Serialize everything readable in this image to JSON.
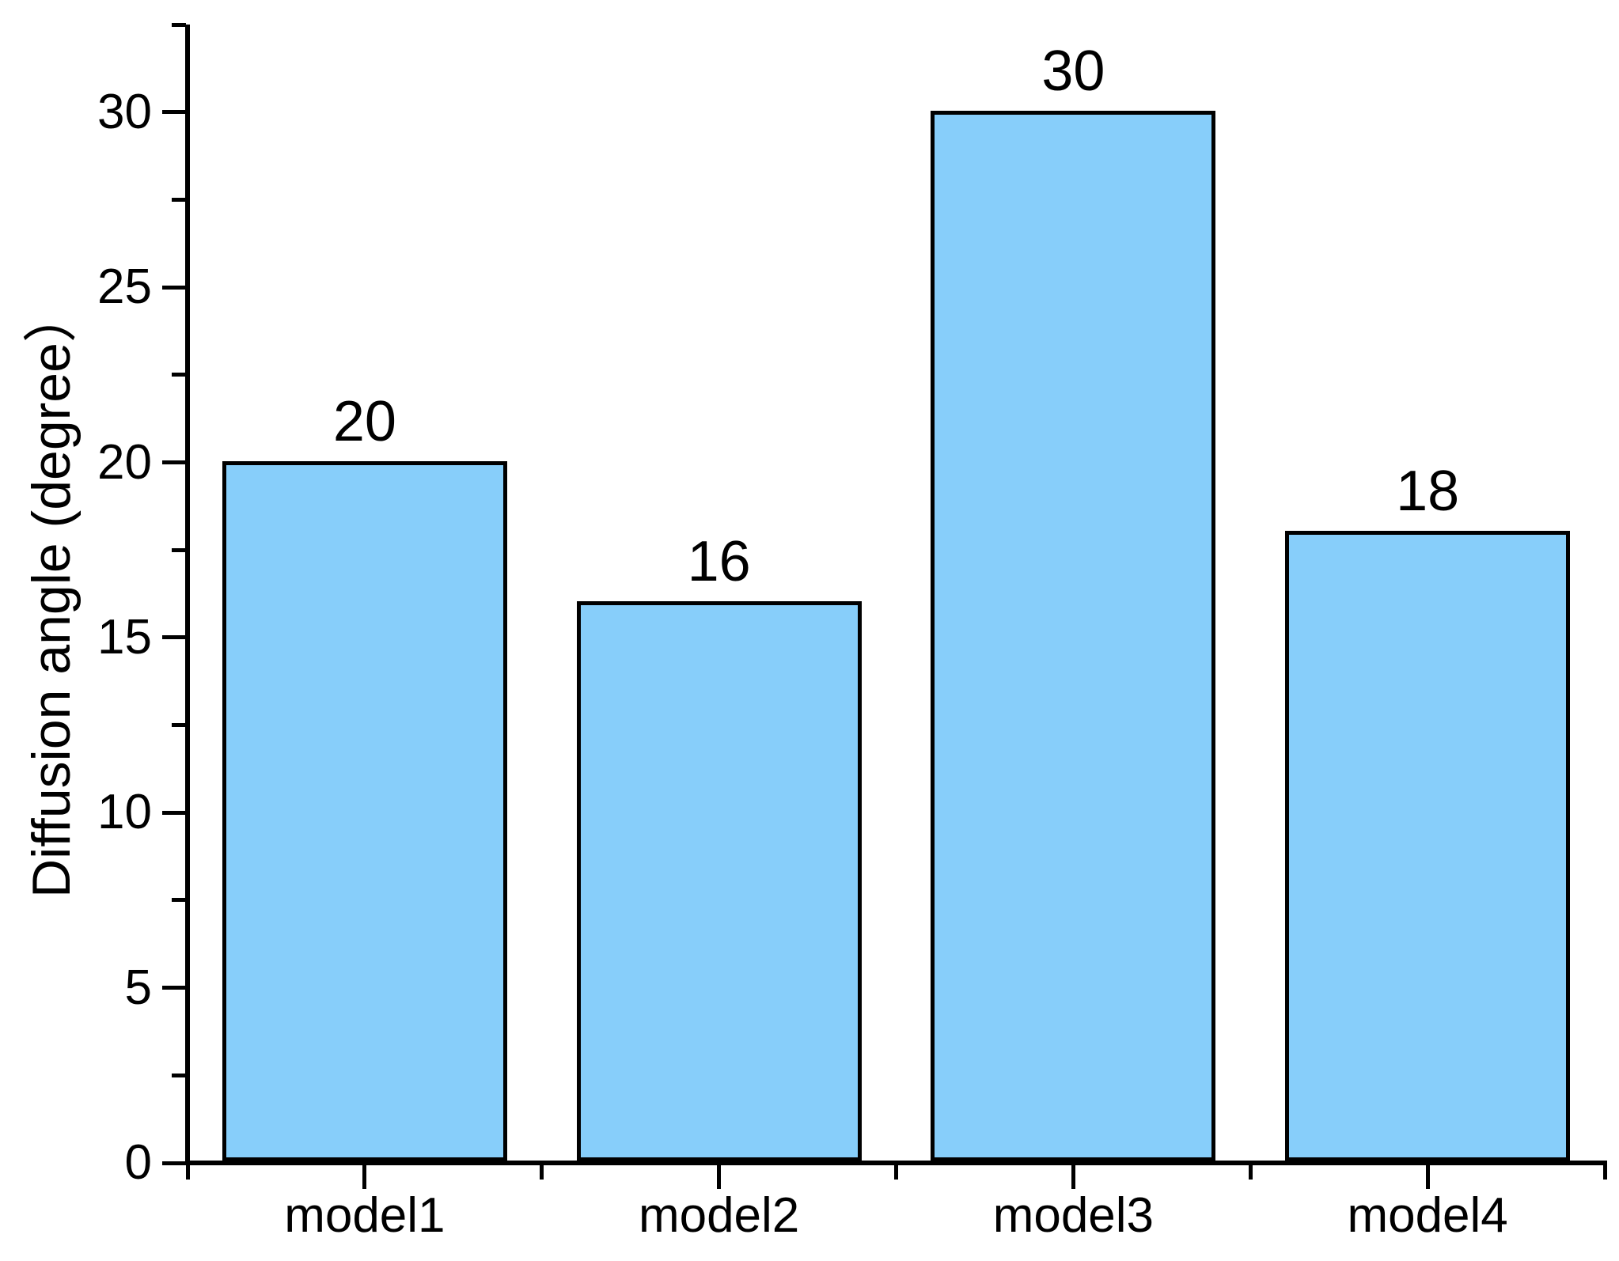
{
  "chart_data": {
    "type": "bar",
    "title": "",
    "xlabel": "",
    "ylabel": "Diffusion angle (degree）",
    "categories": [
      "model1",
      "model2",
      "model3",
      "model4"
    ],
    "values": [
      20,
      16,
      30,
      18
    ],
    "bar_value_labels": [
      "20",
      "16",
      "30",
      "18"
    ],
    "ylim": [
      0,
      32.5
    ],
    "yticks": [
      0,
      5,
      10,
      15,
      20,
      25,
      30
    ],
    "ytick_labels": [
      "0",
      "5",
      "10",
      "15",
      "20",
      "25",
      "30"
    ],
    "minor_tick_step": 2.5,
    "grid": false,
    "legend": false,
    "bar_fill_color": "#87CEFA",
    "bar_edge_color": "#000000",
    "axis_color": "#000000",
    "text_color": "#000000",
    "background_color": "#FFFFFF"
  }
}
